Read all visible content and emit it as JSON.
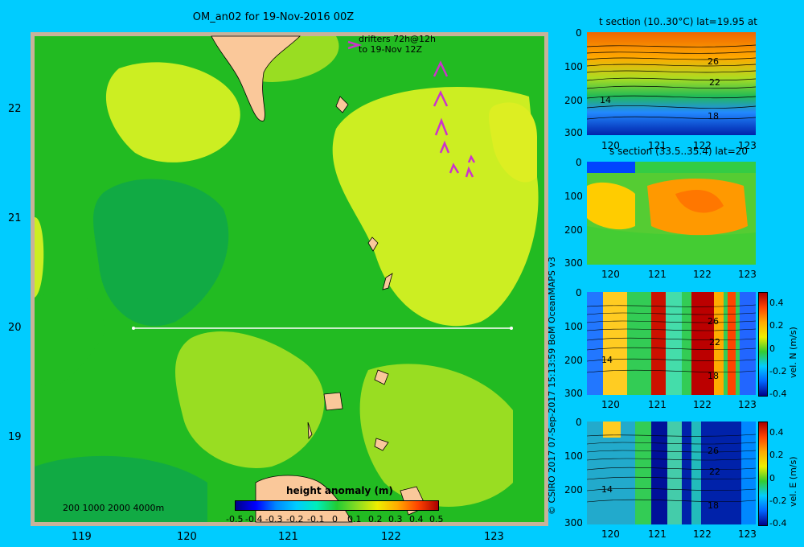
{
  "map": {
    "title": "OM_an02 for 19-Nov-2016 00Z",
    "drifter_note_1": "drifters 72h@12h",
    "drifter_note_2": "to 19-Nov 12Z",
    "x_ticks": [
      "119",
      "120",
      "121",
      "122",
      "123"
    ],
    "y_ticks": [
      "22",
      "21",
      "20",
      "19"
    ],
    "depth_legend": "200  1000  2000  4000m",
    "colorbar_title": "height anomaly (m)",
    "colorbar_ticks": [
      "-0.5",
      "-0.4",
      "-0.3",
      "-0.2",
      "-0.1",
      "0",
      "0.1",
      "0.2",
      "0.3",
      "0.4",
      "0.5"
    ],
    "credit": "© CSIRO 2017   07-Sep-2017 15:13:59 BoM OceanMAPS v3",
    "colors": {
      "land": "#fac89a",
      "shelf": "#c8b29a",
      "background": "#00ccff",
      "section_line": "#ffffff",
      "drifter": "#cc33cc"
    }
  },
  "panels": [
    {
      "title": "t section (10..30°C) lat=19.95 at",
      "x_ticks": [
        "120",
        "121",
        "122",
        "123"
      ],
      "y_ticks": [
        "0",
        "100",
        "200",
        "300"
      ],
      "contour_labels": [
        "26",
        "22",
        "18",
        "14"
      ]
    },
    {
      "title": "s section (33.5..35.4) lat=20",
      "x_ticks": [
        "120",
        "121",
        "122",
        "123"
      ],
      "y_ticks": [
        "0",
        "100",
        "200",
        "300"
      ]
    },
    {
      "title": "",
      "x_ticks": [
        "120",
        "121",
        "122",
        "123"
      ],
      "y_ticks": [
        "0",
        "100",
        "200",
        "300"
      ],
      "contour_labels": [
        "26",
        "22",
        "18",
        "14"
      ],
      "colorbar_label": "vel. N (m/s)",
      "colorbar_ticks": [
        "0.4",
        "0.2",
        "0",
        "-0.2",
        "-0.4"
      ]
    },
    {
      "title": "",
      "x_ticks": [
        "120",
        "121",
        "122",
        "123"
      ],
      "y_ticks": [
        "0",
        "100",
        "200",
        "300"
      ],
      "contour_labels": [
        "26",
        "22",
        "18",
        "14"
      ],
      "colorbar_label": "vel. E (m/s)",
      "colorbar_ticks": [
        "0.4",
        "0.2",
        "0",
        "-0.2",
        "-0.4"
      ]
    }
  ]
}
